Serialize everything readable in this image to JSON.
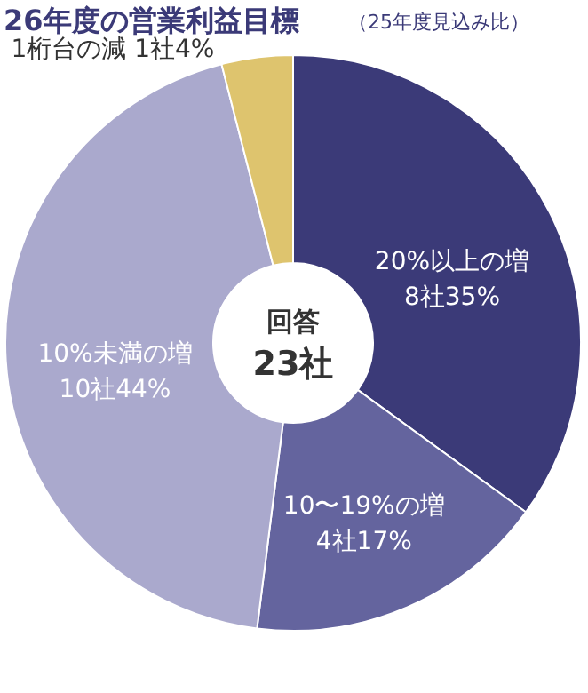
{
  "chart_data": {
    "type": "donut",
    "title": "26年度の営業利益目標",
    "subtitle": "（25年度見込み比）",
    "categories": [
      "20%以上の増",
      "10〜19%の増",
      "10%未満の増",
      "1桁台の減"
    ],
    "values": [
      35,
      17,
      44,
      4
    ],
    "value_labels": [
      "8社35%",
      "4社17%",
      "10社44%",
      "1社4%"
    ],
    "colors": [
      "#3b3a78",
      "#64649e",
      "#aaa9cd",
      "#dec46e"
    ],
    "annotations": [
      "回答",
      "23社"
    ]
  }
}
